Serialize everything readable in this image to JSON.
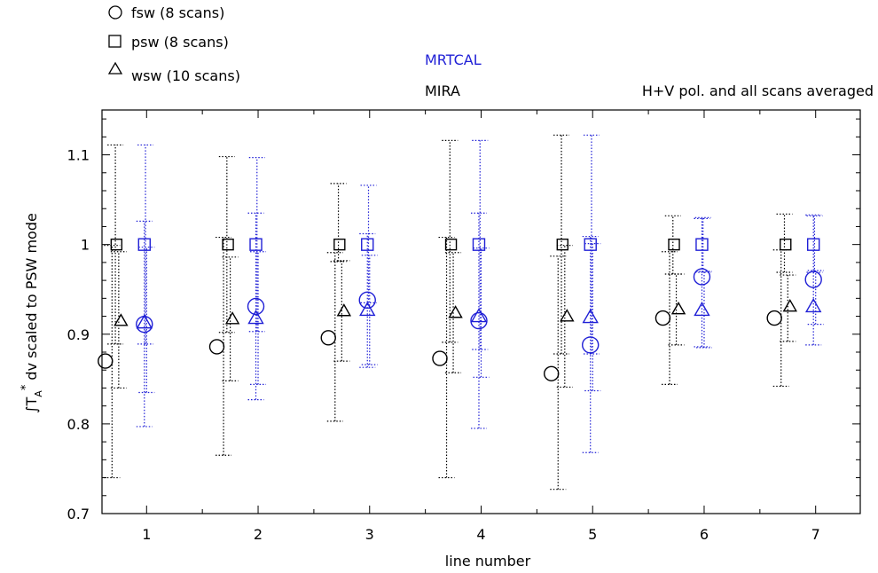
{
  "legend": [
    {
      "marker": "circle",
      "label": "fsw (8 scans)"
    },
    {
      "marker": "square",
      "label": "psw (8 scans)"
    },
    {
      "marker": "triangle",
      "label": "wsw (10 scans)"
    }
  ],
  "labels": {
    "mrtcal": "MRTCAL",
    "mira": "MIRA",
    "note": "H+V pol. and all scans averaged",
    "xlabel": "line number",
    "ylabel_tex": "∫T",
    "ylabel_sub": "A",
    "ylabel_sup": "*",
    "ylabel_rest": " dv scaled to PSW mode"
  },
  "colors": {
    "mira": "#000000",
    "mrtcal": "#1f1fd6"
  },
  "chart_data": {
    "type": "scatter",
    "xlabel": "line number",
    "ylabel": "∫T_A* dv scaled to PSW mode",
    "xlim": [
      0.6,
      7.4
    ],
    "ylim": [
      0.7,
      1.15
    ],
    "xticks": [
      1,
      2,
      3,
      4,
      5,
      6,
      7
    ],
    "yticks": [
      0.7,
      0.8,
      0.9,
      1,
      1.1
    ],
    "ytick_labels": [
      "0.7",
      "0.8",
      "0.9",
      "1",
      "1.1"
    ],
    "series": [
      {
        "name": "MIRA",
        "mode": "fsw",
        "x": [
          1,
          2,
          3,
          4,
          5,
          6,
          7
        ],
        "y": [
          0.87,
          0.886,
          0.896,
          0.873,
          0.856,
          0.918,
          0.918
        ],
        "err_low": [
          0.74,
          0.765,
          0.803,
          0.74,
          0.727,
          0.844,
          0.842
        ],
        "err_high": [
          0.999,
          1.008,
          0.991,
          1.008,
          0.987,
          0.992,
          0.994
        ]
      },
      {
        "name": "MIRA",
        "mode": "psw",
        "x": [
          1,
          2,
          3,
          4,
          5,
          6,
          7
        ],
        "y": [
          1.0,
          1.0,
          1.0,
          1.0,
          1.0,
          1.0,
          1.0
        ],
        "err_low": [
          0.889,
          0.902,
          0.981,
          0.891,
          0.878,
          0.967,
          0.969
        ],
        "err_high": [
          1.111,
          1.098,
          1.068,
          1.116,
          1.122,
          1.032,
          1.034
        ]
      },
      {
        "name": "MIRA",
        "mode": "wsw",
        "x": [
          1,
          2,
          3,
          4,
          5,
          6,
          7
        ],
        "y": [
          0.915,
          0.917,
          0.926,
          0.924,
          0.92,
          0.928,
          0.931
        ],
        "err_low": [
          0.84,
          0.848,
          0.87,
          0.857,
          0.841,
          0.888,
          0.892
        ],
        "err_high": [
          0.992,
          0.986,
          0.982,
          0.991,
          0.999,
          0.967,
          0.966
        ]
      },
      {
        "name": "MRTCAL",
        "mode": "fsw",
        "x": [
          1,
          2,
          3,
          4,
          5,
          6,
          7
        ],
        "y": [
          0.911,
          0.931,
          0.938,
          0.915,
          0.888,
          0.964,
          0.961
        ],
        "err_low": [
          0.797,
          0.827,
          0.863,
          0.795,
          0.768,
          0.886,
          0.888
        ],
        "err_high": [
          1.026,
          1.035,
          1.012,
          1.035,
          1.009,
          1.029,
          1.033
        ]
      },
      {
        "name": "MRTCAL",
        "mode": "psw",
        "x": [
          1,
          2,
          3,
          4,
          5,
          6,
          7
        ],
        "y": [
          1.0,
          1.0,
          1.0,
          1.0,
          1.0,
          1.0,
          1.0
        ],
        "err_low": [
          0.889,
          0.903,
          0.935,
          0.883,
          0.878,
          0.969,
          0.969
        ],
        "err_high": [
          1.111,
          1.097,
          1.066,
          1.116,
          1.122,
          1.03,
          1.032
        ]
      },
      {
        "name": "MRTCAL",
        "mode": "wsw",
        "x": [
          1,
          2,
          3,
          4,
          5,
          6,
          7
        ],
        "y": [
          0.913,
          0.918,
          0.927,
          0.92,
          0.919,
          0.927,
          0.931
        ],
        "err_low": [
          0.835,
          0.844,
          0.866,
          0.852,
          0.837,
          0.885,
          0.911
        ],
        "err_high": [
          0.997,
          0.992,
          0.988,
          0.996,
          1.001,
          0.97,
          0.971
        ]
      }
    ]
  }
}
